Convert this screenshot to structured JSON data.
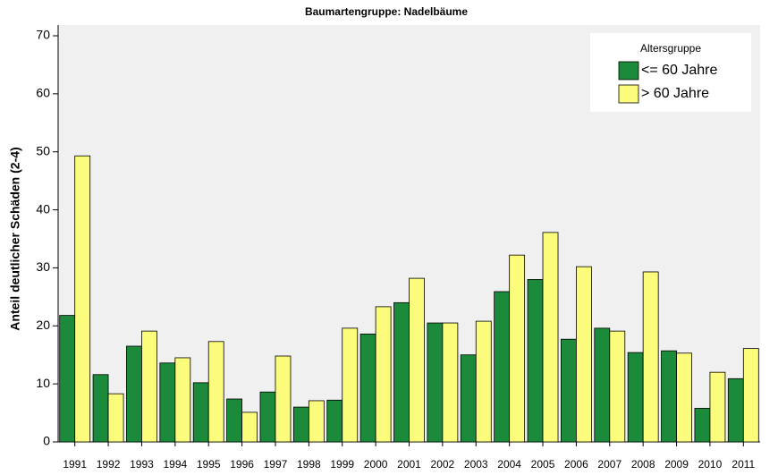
{
  "chart_data": {
    "type": "bar",
    "title": "Baumartengruppe: Nadelbäume",
    "y_label": "Anteil deutlicher Schäden (2-4)",
    "legend_title": "Altersgruppe",
    "legend_position": "top-right",
    "grid": false,
    "categories": [
      "1991",
      "1992",
      "1993",
      "1994",
      "1995",
      "1996",
      "1997",
      "1998",
      "1999",
      "2000",
      "2001",
      "2002",
      "2003",
      "2004",
      "2005",
      "2006",
      "2007",
      "2008",
      "2009",
      "2010",
      "2011"
    ],
    "series": [
      {
        "name": "<= 60 Jahre",
        "color": "#1b8a3a",
        "values": [
          21.8,
          11.6,
          16.5,
          13.6,
          10.2,
          7.4,
          8.6,
          6.0,
          7.2,
          18.6,
          24.0,
          20.5,
          15.0,
          25.9,
          28.0,
          17.7,
          19.6,
          15.4,
          15.7,
          5.8,
          10.9
        ]
      },
      {
        "name": "> 60 Jahre",
        "color": "#fbfb7c",
        "values": [
          49.3,
          8.3,
          19.1,
          14.5,
          17.3,
          5.1,
          14.8,
          7.1,
          19.6,
          23.3,
          28.2,
          20.5,
          20.8,
          32.2,
          36.1,
          30.2,
          19.1,
          29.3,
          15.3,
          12.0,
          16.1
        ]
      }
    ],
    "ylim": [
      0,
      70
    ],
    "yticks": [
      0,
      10,
      20,
      30,
      40,
      50,
      60,
      70
    ]
  }
}
